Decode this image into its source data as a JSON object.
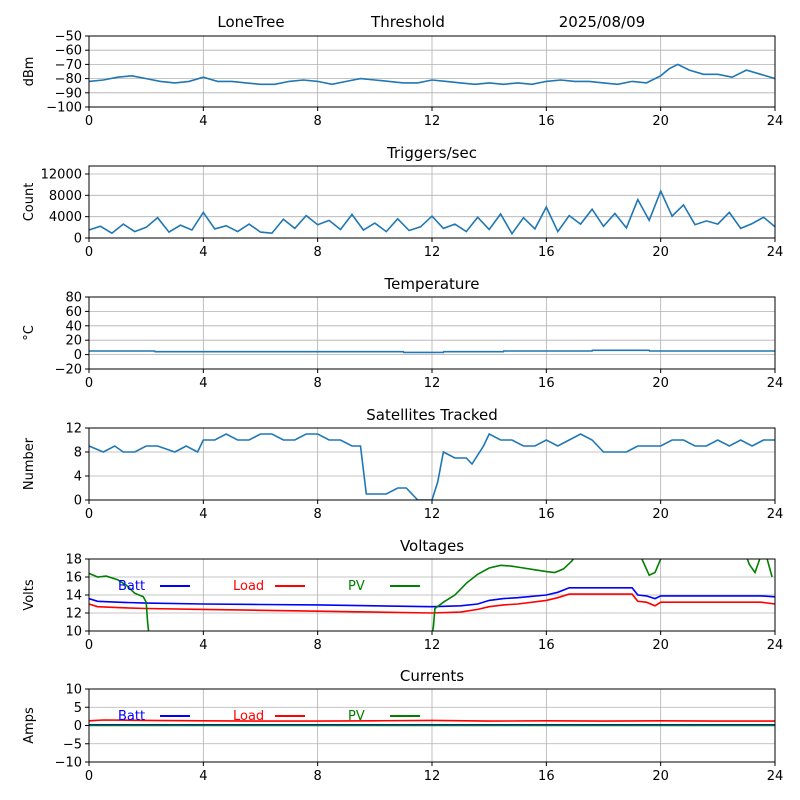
{
  "header": {
    "station": "LoneTree",
    "mode": "Threshold",
    "date": "2025/08/09"
  },
  "chart_data": [
    {
      "type": "line",
      "title": "",
      "ylabel": "dBm",
      "xlabel": "",
      "xlim": [
        0,
        24
      ],
      "ylim": [
        -100,
        -50
      ],
      "xticks": [
        0,
        4,
        8,
        12,
        16,
        20,
        24
      ],
      "yticks": [
        -100,
        -90,
        -80,
        -70,
        -60,
        -50
      ],
      "grid": true,
      "color": "#1f77b4",
      "series": [
        {
          "x": [
            0,
            0.5,
            1,
            1.5,
            2,
            2.5,
            3,
            3.5,
            4,
            4.5,
            5,
            5.5,
            6,
            6.5,
            7,
            7.5,
            8,
            8.5,
            9,
            9.5,
            10,
            10.5,
            11,
            11.5,
            12,
            12.5,
            13,
            13.5,
            14,
            14.5,
            15,
            15.5,
            16,
            16.5,
            17,
            17.5,
            18,
            18.5,
            19,
            19.5,
            20,
            20.3,
            20.6,
            21,
            21.5,
            22,
            22.5,
            23,
            23.5,
            24
          ],
          "values": [
            -82,
            -81,
            -79,
            -78,
            -80,
            -82,
            -83,
            -82,
            -79,
            -82,
            -82,
            -83,
            -84,
            -84,
            -82,
            -81,
            -82,
            -84,
            -82,
            -80,
            -81,
            -82,
            -83,
            -83,
            -81,
            -82,
            -83,
            -84,
            -83,
            -84,
            -83,
            -84,
            -82,
            -81,
            -82,
            -82,
            -83,
            -84,
            -82,
            -83,
            -78,
            -73,
            -70,
            -74,
            -77,
            -77,
            -79,
            -74,
            -77,
            -80
          ]
        }
      ]
    },
    {
      "type": "line",
      "title": "Triggers/sec",
      "ylabel": "Count",
      "xlabel": "",
      "xlim": [
        0,
        24
      ],
      "ylim": [
        0,
        13500
      ],
      "xticks": [
        0,
        4,
        8,
        12,
        16,
        20,
        24
      ],
      "yticks": [
        0,
        4000,
        8000,
        12000
      ],
      "grid": true,
      "color": "#1f77b4",
      "series": [
        {
          "x": [
            0,
            0.4,
            0.8,
            1.2,
            1.6,
            2,
            2.4,
            2.8,
            3.2,
            3.6,
            4,
            4.4,
            4.8,
            5.2,
            5.6,
            6,
            6.4,
            6.8,
            7.2,
            7.6,
            8,
            8.4,
            8.8,
            9.2,
            9.6,
            10,
            10.4,
            10.8,
            11.2,
            11.6,
            12,
            12.4,
            12.8,
            13.2,
            13.6,
            14,
            14.4,
            14.8,
            15.2,
            15.6,
            16,
            16.4,
            16.8,
            17.2,
            17.6,
            18,
            18.4,
            18.8,
            19.2,
            19.6,
            20,
            20.4,
            20.8,
            21.2,
            21.6,
            22,
            22.4,
            22.8,
            23.2,
            23.6,
            24
          ],
          "values": [
            1500,
            2200,
            900,
            2600,
            1200,
            2000,
            3800,
            1100,
            2400,
            1500,
            4800,
            1700,
            2300,
            1200,
            2600,
            1100,
            900,
            3500,
            1800,
            4200,
            2500,
            3300,
            1600,
            4400,
            1500,
            2800,
            1200,
            3600,
            1400,
            2100,
            4100,
            1800,
            2600,
            1200,
            3900,
            1600,
            4500,
            800,
            3800,
            1700,
            5800,
            1200,
            4200,
            2600,
            5400,
            2200,
            4600,
            1900,
            7200,
            3300,
            8800,
            4100,
            6200,
            2500,
            3200,
            2600,
            4800,
            1800,
            2700,
            3900,
            2100
          ]
        }
      ]
    },
    {
      "type": "line",
      "title": "Temperature",
      "ylabel": "°C",
      "xlabel": "",
      "xlim": [
        0,
        24
      ],
      "ylim": [
        -20,
        80
      ],
      "xticks": [
        0,
        4,
        8,
        12,
        16,
        20,
        24
      ],
      "yticks": [
        -20,
        0,
        20,
        40,
        60,
        80
      ],
      "grid": true,
      "color": "#1f77b4",
      "series": [
        {
          "x": [
            0,
            2.3,
            2.31,
            11,
            11.01,
            12.4,
            12.41,
            14.5,
            14.51,
            17.6,
            17.61,
            19.6,
            19.61,
            24
          ],
          "values": [
            5,
            5,
            4,
            4,
            3,
            3,
            4,
            4,
            5,
            5,
            6,
            6,
            5,
            5
          ]
        }
      ]
    },
    {
      "type": "line",
      "title": "Satellites Tracked",
      "ylabel": "Number",
      "xlabel": "",
      "xlim": [
        0,
        24
      ],
      "ylim": [
        0,
        12
      ],
      "xticks": [
        0,
        4,
        8,
        12,
        16,
        20,
        24
      ],
      "yticks": [
        0,
        4,
        8,
        12
      ],
      "grid": true,
      "color": "#1f77b4",
      "series": [
        {
          "x": [
            0,
            0.5,
            0.9,
            1.2,
            1.6,
            2,
            2.4,
            3,
            3.4,
            3.8,
            4,
            4.4,
            4.8,
            5.2,
            5.6,
            6,
            6.4,
            6.8,
            7.2,
            7.6,
            8,
            8.4,
            8.8,
            9.2,
            9.5,
            9.7,
            10,
            10.4,
            10.8,
            11.1,
            11.5,
            12,
            12.2,
            12.4,
            12.8,
            13.2,
            13.4,
            13.8,
            14,
            14.4,
            14.8,
            15.2,
            15.6,
            16,
            16.4,
            16.8,
            17.2,
            17.6,
            18,
            18.4,
            18.8,
            19.2,
            19.6,
            20,
            20.4,
            20.8,
            21.2,
            21.6,
            22,
            22.4,
            22.8,
            23.2,
            23.6,
            24
          ],
          "values": [
            9,
            8,
            9,
            8,
            8,
            9,
            9,
            8,
            9,
            8,
            10,
            10,
            11,
            10,
            10,
            11,
            11,
            10,
            10,
            11,
            11,
            10,
            10,
            9,
            9,
            1,
            1,
            1,
            2,
            2,
            0,
            0,
            3,
            8,
            7,
            7,
            6,
            9,
            11,
            10,
            10,
            9,
            9,
            10,
            9,
            10,
            11,
            10,
            8,
            8,
            8,
            9,
            9,
            9,
            10,
            10,
            9,
            9,
            10,
            9,
            10,
            9,
            10,
            10
          ]
        }
      ]
    },
    {
      "type": "line",
      "title": "Voltages",
      "ylabel": "Volts",
      "xlabel": "",
      "xlim": [
        0,
        24
      ],
      "ylim": [
        10,
        18
      ],
      "xticks": [
        0,
        4,
        8,
        12,
        16,
        20,
        24
      ],
      "yticks": [
        10,
        12,
        14,
        16,
        18
      ],
      "grid": true,
      "legend": "top-left, horizontal",
      "series": [
        {
          "name": "Batt",
          "color": "#0000ff",
          "x": [
            0,
            0.3,
            1,
            2,
            4,
            6,
            8,
            10,
            12,
            13,
            13.6,
            14,
            14.5,
            15,
            16,
            16.4,
            16.8,
            17,
            18,
            19,
            19.2,
            19.5,
            19.8,
            20,
            21,
            22,
            23,
            23.5,
            24
          ],
          "values": [
            13.6,
            13.3,
            13.2,
            13.1,
            13.0,
            12.95,
            12.9,
            12.8,
            12.7,
            12.8,
            13.0,
            13.4,
            13.6,
            13.7,
            14.0,
            14.3,
            14.8,
            14.8,
            14.8,
            14.8,
            14.0,
            13.9,
            13.6,
            13.9,
            13.9,
            13.9,
            13.9,
            13.9,
            13.8
          ]
        },
        {
          "name": "Load",
          "color": "#ff0000",
          "x": [
            0,
            0.3,
            1,
            2,
            4,
            6,
            8,
            10,
            12,
            13,
            13.6,
            14,
            14.5,
            15,
            16,
            16.4,
            16.8,
            17,
            18,
            19,
            19.2,
            19.5,
            19.8,
            20,
            21,
            22,
            23,
            23.5,
            24
          ],
          "values": [
            13.0,
            12.7,
            12.6,
            12.5,
            12.4,
            12.3,
            12.2,
            12.1,
            12.0,
            12.1,
            12.4,
            12.7,
            12.9,
            13.0,
            13.4,
            13.7,
            14.1,
            14.1,
            14.1,
            14.1,
            13.3,
            13.2,
            12.8,
            13.2,
            13.2,
            13.2,
            13.2,
            13.2,
            13.0
          ]
        },
        {
          "name": "PV",
          "color": "#008000",
          "x": [
            0,
            0.3,
            0.6,
            1,
            1.3,
            1.6,
            1.9,
            2.0,
            2.05,
            2.1,
            2.15,
            12.0,
            12.05,
            12.1,
            12.4,
            12.8,
            13.2,
            13.6,
            14,
            14.4,
            14.8,
            15.2,
            15.6,
            16,
            16.3,
            16.6,
            16.9,
            17,
            19.3,
            19.4,
            19.6,
            19.8,
            20,
            20.1,
            23.0,
            23.1,
            23.3,
            23.5,
            23.7,
            23.9
          ],
          "values": [
            16.4,
            16.0,
            16.1,
            15.7,
            15.1,
            14.2,
            13.8,
            13.2,
            11.0,
            9.5,
            9.5,
            9.5,
            10.5,
            12.5,
            13.2,
            14.0,
            15.3,
            16.3,
            17.0,
            17.3,
            17.2,
            17.0,
            16.8,
            16.6,
            16.5,
            16.9,
            17.8,
            18.3,
            18.3,
            17.6,
            16.2,
            16.5,
            18.0,
            18.3,
            18.3,
            17.4,
            16.5,
            18.3,
            18.3,
            16.0
          ]
        }
      ]
    },
    {
      "type": "line",
      "title": "Currents",
      "ylabel": "Amps",
      "xlabel": "",
      "xlim": [
        0,
        24
      ],
      "ylim": [
        -10,
        10
      ],
      "xticks": [
        0,
        4,
        8,
        12,
        16,
        20,
        24
      ],
      "yticks": [
        -10,
        -5,
        0,
        5,
        10
      ],
      "grid": true,
      "legend": "top-left, horizontal",
      "series": [
        {
          "name": "Batt",
          "color": "#0000ff",
          "x": [
            0,
            24
          ],
          "values": [
            0.2,
            0.2
          ]
        },
        {
          "name": "Load",
          "color": "#ff0000",
          "x": [
            0,
            0.5,
            2,
            4,
            6,
            8,
            10,
            12,
            14,
            16,
            18,
            20,
            22,
            24
          ],
          "values": [
            1.3,
            1.5,
            1.4,
            1.3,
            1.2,
            1.2,
            1.3,
            1.4,
            1.2,
            1.3,
            1.2,
            1.3,
            1.2,
            1.2
          ]
        },
        {
          "name": "PV",
          "color": "#008000",
          "x": [
            0,
            24
          ],
          "values": [
            0.0,
            0.0
          ]
        }
      ]
    }
  ]
}
